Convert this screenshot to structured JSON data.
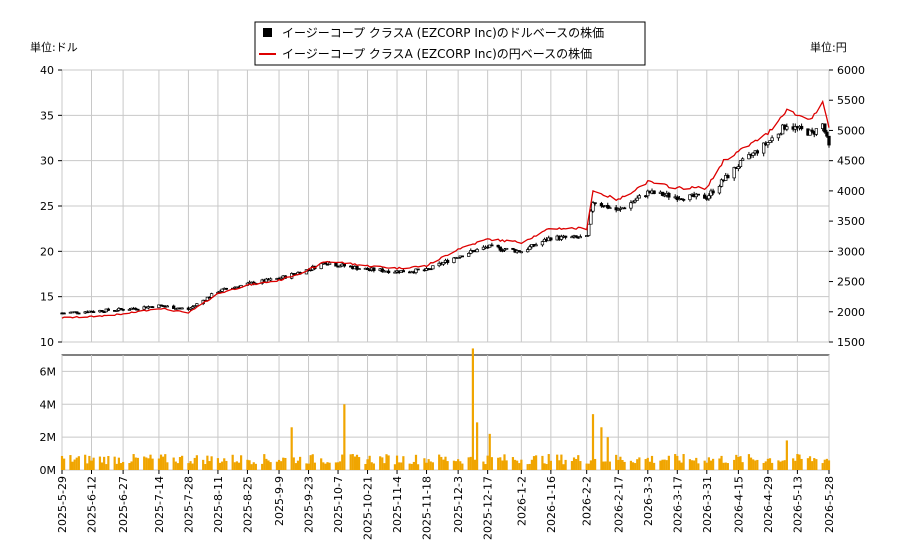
{
  "chart_data": [
    {
      "type": "candlestick+line",
      "legend": {
        "placement": "top-center",
        "entries": [
          {
            "label": "イージーコープ クラスA (EZCORP Inc)のドルベースの株価",
            "color": "#000000",
            "marker": "square"
          },
          {
            "label": "イージーコープ クラスA (EZCORP Inc)の円ベースの株価",
            "color": "#dd0000",
            "marker": "line"
          }
        ]
      },
      "left_unit_label": "単位:ドル",
      "right_unit_label": "単位:円",
      "ylim_left": [
        10,
        40
      ],
      "ylim_right": [
        1500,
        6000
      ],
      "yticks_left": [
        "10",
        "15",
        "20",
        "25",
        "30",
        "35",
        "40"
      ],
      "yticks_right": [
        "1500",
        "2000",
        "2500",
        "3000",
        "3500",
        "4000",
        "4500",
        "5000",
        "5500",
        "6000"
      ],
      "grid": true,
      "price_keypoints_usd": [
        [
          "2025-05-29",
          13.2
        ],
        [
          "2025-06-12",
          13.4
        ],
        [
          "2025-06-27",
          13.6
        ],
        [
          "2025-07-14",
          14.0
        ],
        [
          "2025-07-22",
          13.8
        ],
        [
          "2025-07-28",
          13.6
        ],
        [
          "2025-08-11",
          15.6
        ],
        [
          "2025-08-25",
          16.4
        ],
        [
          "2025-09-09",
          17.0
        ],
        [
          "2025-09-23",
          18.0
        ],
        [
          "2025-10-01",
          18.8
        ],
        [
          "2025-10-07",
          18.5
        ],
        [
          "2025-10-21",
          18.0
        ],
        [
          "2025-11-04",
          17.8
        ],
        [
          "2025-11-18",
          17.9
        ],
        [
          "2025-12-03",
          19.5
        ],
        [
          "2025-12-17",
          20.5
        ],
        [
          "2026-01-02",
          20.0
        ],
        [
          "2026-01-16",
          21.5
        ],
        [
          "2026-02-02",
          21.5
        ],
        [
          "2026-02-05",
          25.5
        ],
        [
          "2026-02-17",
          24.5
        ],
        [
          "2026-03-03",
          26.5
        ],
        [
          "2026-03-17",
          26.0
        ],
        [
          "2026-03-31",
          26.0
        ],
        [
          "2026-04-15",
          29.5
        ],
        [
          "2026-04-29",
          32.0
        ],
        [
          "2026-05-08",
          34.0
        ],
        [
          "2026-05-13",
          33.5
        ],
        [
          "2026-05-20",
          33.0
        ],
        [
          "2026-05-25",
          34.0
        ],
        [
          "2026-05-28",
          31.5
        ]
      ],
      "price_keypoints_jpy": [
        [
          "2025-05-29",
          1900
        ],
        [
          "2025-06-12",
          1920
        ],
        [
          "2025-06-27",
          1960
        ],
        [
          "2025-07-14",
          2060
        ],
        [
          "2025-07-28",
          1980
        ],
        [
          "2025-08-11",
          2300
        ],
        [
          "2025-08-25",
          2440
        ],
        [
          "2025-09-09",
          2520
        ],
        [
          "2025-09-23",
          2690
        ],
        [
          "2025-10-01",
          2830
        ],
        [
          "2025-10-07",
          2820
        ],
        [
          "2025-10-21",
          2760
        ],
        [
          "2025-11-04",
          2720
        ],
        [
          "2025-11-18",
          2760
        ],
        [
          "2025-12-03",
          3040
        ],
        [
          "2025-12-17",
          3200
        ],
        [
          "2026-01-02",
          3150
        ],
        [
          "2026-01-16",
          3380
        ],
        [
          "2026-02-02",
          3380
        ],
        [
          "2026-02-05",
          4000
        ],
        [
          "2026-02-17",
          3850
        ],
        [
          "2026-03-03",
          4150
        ],
        [
          "2026-03-17",
          4050
        ],
        [
          "2026-03-31",
          4050
        ],
        [
          "2026-04-08",
          4500
        ],
        [
          "2026-04-15",
          4650
        ],
        [
          "2026-04-29",
          4950
        ],
        [
          "2026-05-08",
          5350
        ],
        [
          "2026-05-13",
          5250
        ],
        [
          "2026-05-20",
          5200
        ],
        [
          "2026-05-25",
          5450
        ],
        [
          "2026-05-28",
          5050
        ]
      ]
    },
    {
      "type": "bar",
      "name": "volume",
      "color": "#f0a500",
      "ylim": [
        0,
        7000000
      ],
      "yticks": [
        "0M",
        "2M",
        "4M",
        "6M"
      ],
      "typical_volume": 700000,
      "volume_spikes": [
        [
          "2025-09-15",
          2600000
        ],
        [
          "2025-10-10",
          4000000
        ],
        [
          "2025-12-10",
          7400000
        ],
        [
          "2025-12-12",
          2900000
        ],
        [
          "2025-12-18",
          2200000
        ],
        [
          "2026-02-05",
          3400000
        ],
        [
          "2026-02-09",
          2600000
        ],
        [
          "2026-02-12",
          2000000
        ],
        [
          "2026-05-08",
          1800000
        ]
      ]
    }
  ],
  "x_tick_labels": [
    "2025-5-29",
    "2025-6-12",
    "2025-6-27",
    "2025-7-14",
    "2025-7-28",
    "2025-8-11",
    "2025-8-25",
    "2025-9-9",
    "2025-9-23",
    "2025-10-7",
    "2025-10-21",
    "2025-11-4",
    "2025-11-18",
    "2025-12-3",
    "2025-12-17",
    "2026-1-2",
    "2026-1-16",
    "2026-2-2",
    "2026-2-17",
    "2026-3-3",
    "2026-3-17",
    "2026-3-31",
    "2026-4-15",
    "2026-4-29",
    "2026-5-13",
    "2026-5-28"
  ],
  "x_tick_dates": [
    "2025-05-29",
    "2025-06-12",
    "2025-06-27",
    "2025-07-14",
    "2025-07-28",
    "2025-08-11",
    "2025-08-25",
    "2025-09-09",
    "2025-09-23",
    "2025-10-07",
    "2025-10-21",
    "2025-11-04",
    "2025-11-18",
    "2025-12-03",
    "2025-12-17",
    "2026-01-02",
    "2026-01-16",
    "2026-02-02",
    "2026-02-17",
    "2026-03-03",
    "2026-03-17",
    "2026-03-31",
    "2026-04-15",
    "2026-04-29",
    "2026-05-13",
    "2026-05-28"
  ],
  "x_range": [
    "2025-05-29",
    "2026-05-28"
  ],
  "colors": {
    "candle": "#000000",
    "jpy_line": "#dd0000",
    "volume": "#f0a500",
    "grid": "#c8c8c8"
  }
}
